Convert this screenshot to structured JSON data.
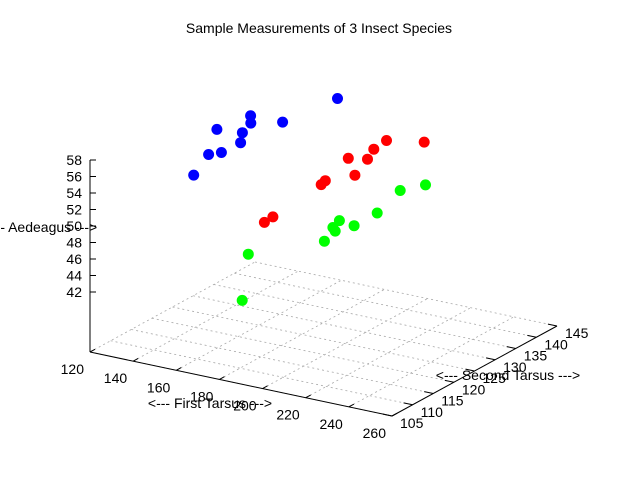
{
  "chart_data": {
    "type": "scatter3d",
    "title": "Sample Measurements of 3 Insect Species",
    "xlabel": "<--- First Tarsus --->",
    "ylabel": "<--- Second Tarsus --->",
    "zlabel": "<--- Aedeagus --->",
    "xlim": [
      120,
      260
    ],
    "ylim": [
      105,
      145
    ],
    "zlim": [
      42,
      58
    ],
    "xticks": [
      "120",
      "140",
      "160",
      "180",
      "200",
      "220",
      "240",
      "260"
    ],
    "yticks": [
      "105",
      "110",
      "115",
      "120",
      "125",
      "130",
      "135",
      "140",
      "145"
    ],
    "zticks": [
      "42",
      "44",
      "46",
      "48",
      "50",
      "52",
      "54",
      "56",
      "58"
    ],
    "grid": true,
    "legend": "none",
    "series": [
      {
        "color": "#0000ff",
        "points": [
          {
            "x": 126,
            "y": 127,
            "z": 50.5
          },
          {
            "x": 131,
            "y": 130,
            "z": 55.5
          },
          {
            "x": 131,
            "y": 128,
            "z": 53.0
          },
          {
            "x": 135,
            "y": 129,
            "z": 53.2
          },
          {
            "x": 139,
            "y": 134,
            "z": 56.5
          },
          {
            "x": 139,
            "y": 132,
            "z": 55.0
          },
          {
            "x": 141,
            "y": 133,
            "z": 56.0
          },
          {
            "x": 142,
            "y": 130,
            "z": 54.5
          },
          {
            "x": 150,
            "y": 136,
            "z": 55.8
          },
          {
            "x": 164,
            "y": 142,
            "z": 57.8
          }
        ]
      },
      {
        "color": "#ff0000",
        "points": [
          {
            "x": 176,
            "y": 118,
            "z": 50.0
          },
          {
            "x": 178,
            "y": 119,
            "z": 50.5
          },
          {
            "x": 187,
            "y": 126,
            "z": 53.0
          },
          {
            "x": 187,
            "y": 127,
            "z": 53.2
          },
          {
            "x": 190,
            "y": 131,
            "z": 55.0
          },
          {
            "x": 195,
            "y": 130,
            "z": 53.5
          },
          {
            "x": 197,
            "y": 132,
            "z": 55.0
          },
          {
            "x": 198,
            "y": 133,
            "z": 56.0
          },
          {
            "x": 202,
            "y": 134,
            "z": 57.0
          },
          {
            "x": 208,
            "y": 140,
            "z": 55.5
          }
        ]
      },
      {
        "color": "#00ff00",
        "points": [
          {
            "x": 180,
            "y": 112,
            "z": 48.0
          },
          {
            "x": 181,
            "y": 110,
            "z": 43.0
          },
          {
            "x": 200,
            "y": 120,
            "z": 48.5
          },
          {
            "x": 202,
            "y": 121,
            "z": 50.0
          },
          {
            "x": 205,
            "y": 120,
            "z": 50.0
          },
          {
            "x": 205,
            "y": 121,
            "z": 51.0
          },
          {
            "x": 208,
            "y": 123,
            "z": 50.0
          },
          {
            "x": 213,
            "y": 126,
            "z": 51.0
          },
          {
            "x": 216,
            "y": 130,
            "z": 52.8
          },
          {
            "x": 222,
            "y": 133,
            "z": 53.0
          }
        ]
      }
    ]
  }
}
